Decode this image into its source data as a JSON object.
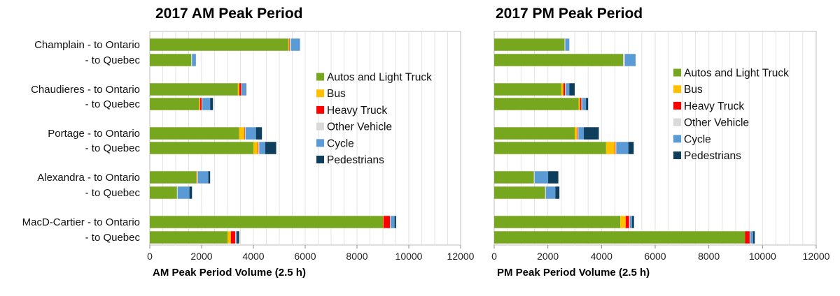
{
  "chart_data": [
    {
      "type": "bar",
      "orientation": "horizontal",
      "stacked": true,
      "title": "2017 AM Peak Period",
      "xlabel": "AM Peak Period Volume (2.5 h)",
      "xlim": [
        0,
        12000
      ],
      "xticks": [
        0,
        2000,
        4000,
        6000,
        8000,
        10000,
        12000
      ],
      "grid": true,
      "legend_position": "right",
      "categories": [
        "Champlain - to Ontario",
        "- to Quebec",
        "Chaudieres - to Ontario",
        "- to Quebec",
        "Portage - to Ontario",
        "- to Quebec",
        "Alexandra - to Ontario",
        "- to Quebec",
        "MacD-Cartier - to Ontario",
        "- to Quebec"
      ],
      "series": [
        {
          "name": "Autos and Light Truck",
          "color": "#77a61f",
          "values": [
            5350,
            1600,
            3400,
            1900,
            3450,
            4000,
            1800,
            1050,
            9000,
            3000
          ]
        },
        {
          "name": "Bus",
          "color": "#ffc000",
          "values": [
            30,
            0,
            60,
            40,
            200,
            170,
            20,
            0,
            20,
            130
          ]
        },
        {
          "name": "Heavy Truck",
          "color": "#ff0000",
          "values": [
            20,
            0,
            70,
            60,
            20,
            20,
            10,
            0,
            250,
            170
          ]
        },
        {
          "name": "Other Vehicle",
          "color": "#d9d9d9",
          "values": [
            50,
            30,
            20,
            30,
            30,
            40,
            30,
            30,
            30,
            20
          ]
        },
        {
          "name": "Cycle",
          "color": "#5b9bd5",
          "values": [
            350,
            150,
            150,
            300,
            400,
            230,
            400,
            450,
            150,
            50
          ]
        },
        {
          "name": "Pedestrians",
          "color": "#0f3d5c",
          "values": [
            0,
            0,
            20,
            110,
            230,
            420,
            70,
            100,
            60,
            80
          ]
        }
      ]
    },
    {
      "type": "bar",
      "orientation": "horizontal",
      "stacked": true,
      "title": "2017 PM Peak Period",
      "xlabel": "PM Peak Period Volume (2.5 h)",
      "xlim": [
        0,
        12000
      ],
      "xticks": [
        0,
        2000,
        4000,
        6000,
        8000,
        10000,
        12000
      ],
      "grid": true,
      "legend_position": "right",
      "categories": [
        "Champlain - to Ontario",
        "- to Quebec",
        "Chaudieres - to Ontario",
        "- to Quebec",
        "Portage - to Ontario",
        "- to Quebec",
        "Alexandra - to Ontario",
        "- to Quebec",
        "MacD-Cartier - to Ontario",
        "- to Quebec"
      ],
      "series": [
        {
          "name": "Autos and Light Truck",
          "color": "#77a61f",
          "values": [
            2620,
            4800,
            2500,
            3150,
            3000,
            4170,
            1480,
            1900,
            4700,
            9350
          ]
        },
        {
          "name": "Bus",
          "color": "#ffc000",
          "values": [
            0,
            0,
            80,
            50,
            90,
            330,
            0,
            0,
            200,
            0
          ]
        },
        {
          "name": "Heavy Truck",
          "color": "#ff0000",
          "values": [
            0,
            0,
            60,
            50,
            20,
            20,
            0,
            0,
            130,
            170
          ]
        },
        {
          "name": "Other Vehicle",
          "color": "#d9d9d9",
          "values": [
            30,
            70,
            30,
            30,
            30,
            30,
            30,
            30,
            30,
            30
          ]
        },
        {
          "name": "Cycle",
          "color": "#5b9bd5",
          "values": [
            150,
            400,
            130,
            140,
            200,
            450,
            500,
            350,
            80,
            100
          ]
        },
        {
          "name": "Pedestrians",
          "color": "#0f3d5c",
          "values": [
            0,
            0,
            200,
            80,
            560,
            200,
            380,
            150,
            70,
            60
          ]
        }
      ]
    }
  ]
}
